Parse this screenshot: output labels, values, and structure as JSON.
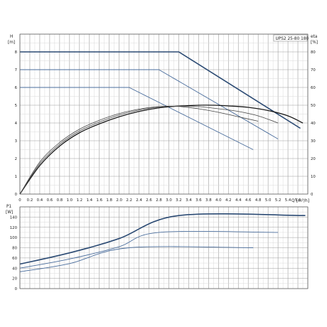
{
  "chart_data": [
    {
      "type": "line",
      "title": "UPS2 25-80 180",
      "ylabel": "H",
      "ylabel_unit": "[m]",
      "y2label": "eta",
      "y2label_unit": "[%]",
      "xlabel": "Q",
      "xlabel_unit": "[m³/h]",
      "xlim": [
        0,
        5.8
      ],
      "ylim": [
        0,
        9
      ],
      "y2lim": [
        0,
        90
      ],
      "x_ticks": [
        "0",
        "0.2",
        "0.4",
        "0.6",
        "0.8",
        "1.0",
        "1.2",
        "1.4",
        "1.6",
        "1.8",
        "2.0",
        "2.2",
        "2.4",
        "2.6",
        "2.8",
        "3.0",
        "3.2",
        "3.4",
        "3.6",
        "3.8",
        "4.0",
        "4.2",
        "4.4",
        "4.6",
        "4.8",
        "5.0",
        "5.2",
        "5.4",
        "5.6"
      ],
      "y_ticks": [
        "0",
        "1",
        "2",
        "3",
        "4",
        "5",
        "6",
        "7",
        "8"
      ],
      "y2_ticks": [
        "0",
        "10",
        "20",
        "30",
        "40",
        "50",
        "60",
        "70",
        "80"
      ],
      "grid": true,
      "series": [
        {
          "kind": "head",
          "color": "#2b4a73",
          "width": 1.6,
          "x": [
            0,
            3.2,
            5.65
          ],
          "y": [
            8,
            8,
            3.7
          ]
        },
        {
          "kind": "head",
          "color": "#4a6d9c",
          "width": 0.9,
          "x": [
            0,
            2.8,
            5.2
          ],
          "y": [
            7,
            7,
            3.1
          ]
        },
        {
          "kind": "head",
          "color": "#4a6d9c",
          "width": 0.9,
          "x": [
            0,
            2.2,
            4.7
          ],
          "y": [
            6,
            6,
            2.5
          ]
        },
        {
          "kind": "eta",
          "color": "#1a1a1a",
          "width": 1.3,
          "x": [
            0,
            0.4,
            0.8,
            1.2,
            1.6,
            2.0,
            2.4,
            2.8,
            3.2,
            3.6,
            3.9,
            4.2,
            4.6,
            5.0,
            5.4,
            5.7
          ],
          "y": [
            0,
            16,
            27,
            34.5,
            39.5,
            43.5,
            46.5,
            48.5,
            49.5,
            50,
            50,
            49.6,
            48.8,
            47,
            44,
            40
          ]
        },
        {
          "kind": "eta",
          "color": "#444444",
          "width": 0.8,
          "x": [
            0,
            0.4,
            0.8,
            1.2,
            1.6,
            2.0,
            2.4,
            2.8,
            3.2,
            3.6,
            4.0,
            4.4,
            4.8,
            5.2
          ],
          "y": [
            0,
            17,
            28,
            35.5,
            40.5,
            44.5,
            47.3,
            49,
            49.5,
            49.2,
            48,
            46.5,
            44,
            40
          ]
        },
        {
          "kind": "eta",
          "color": "#444444",
          "width": 0.8,
          "x": [
            0,
            0.4,
            0.8,
            1.2,
            1.6,
            2.0,
            2.4,
            2.8,
            3.2,
            3.6,
            4.0,
            4.4,
            4.8
          ],
          "y": [
            0,
            18,
            29,
            36.5,
            41.5,
            45.3,
            47.8,
            49.2,
            49.3,
            48,
            46,
            43.5,
            41
          ]
        }
      ]
    },
    {
      "type": "line",
      "ylabel": "P1",
      "ylabel_unit": "[W]",
      "xlim": [
        0,
        5.8
      ],
      "ylim": [
        0,
        160
      ],
      "y_ticks": [
        "0",
        "20",
        "40",
        "60",
        "80",
        "100",
        "120",
        "140"
      ],
      "grid": true,
      "series": [
        {
          "color": "#2b4a73",
          "width": 1.6,
          "x": [
            0,
            1.0,
            2.0,
            3.2,
            5.75
          ],
          "y": [
            48,
            70,
            98,
            143,
            143
          ]
        },
        {
          "color": "#4a6d9c",
          "width": 0.9,
          "x": [
            0,
            1.0,
            2.0,
            2.8,
            5.2
          ],
          "y": [
            40,
            58,
            82,
            110,
            110
          ]
        },
        {
          "color": "#4a6d9c",
          "width": 0.9,
          "x": [
            0,
            1.0,
            2.2,
            4.7
          ],
          "y": [
            33,
            49,
            80,
            80
          ]
        }
      ]
    }
  ]
}
